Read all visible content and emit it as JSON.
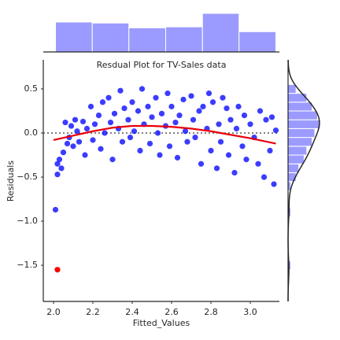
{
  "chart_data": {
    "type": "scatter",
    "title": "Resdual Plot for TV-Sales data",
    "xlabel": "Fitted_Values",
    "ylabel": "Residuals",
    "xlim": [
      1.948,
      3.148
    ],
    "ylim": [
      -1.91,
      0.83
    ],
    "xticks": [
      {
        "value": 2.0,
        "label": "2.0"
      },
      {
        "value": 2.2,
        "label": "2.2"
      },
      {
        "value": 2.4,
        "label": "2.4"
      },
      {
        "value": 2.6,
        "label": "2.6"
      },
      {
        "value": 2.8,
        "label": "2.8"
      },
      {
        "value": 3.0,
        "label": "3.0"
      }
    ],
    "yticks": [
      {
        "value": 0.5,
        "label": "0.5"
      },
      {
        "value": 0.0,
        "label": "0.0"
      },
      {
        "value": -0.5,
        "label": "−0.5"
      },
      {
        "value": -1.0,
        "label": "−1.0"
      },
      {
        "value": -1.5,
        "label": "−1.5"
      }
    ],
    "hline": 0,
    "scatter": {
      "color": "#1a1aff",
      "x": [
        2.01,
        2.02,
        2.02,
        2.03,
        2.04,
        2.05,
        2.06,
        2.07,
        2.08,
        2.09,
        2.1,
        2.11,
        2.12,
        2.13,
        2.15,
        2.16,
        2.17,
        2.19,
        2.2,
        2.21,
        2.23,
        2.24,
        2.25,
        2.26,
        2.28,
        2.29,
        2.3,
        2.31,
        2.33,
        2.34,
        2.35,
        2.36,
        2.38,
        2.39,
        2.4,
        2.41,
        2.43,
        2.44,
        2.45,
        2.46,
        2.48,
        2.49,
        2.5,
        2.52,
        2.53,
        2.54,
        2.55,
        2.57,
        2.58,
        2.59,
        2.6,
        2.62,
        2.63,
        2.64,
        2.66,
        2.67,
        2.68,
        2.7,
        2.71,
        2.72,
        2.74,
        2.75,
        2.76,
        2.78,
        2.79,
        2.8,
        2.81,
        2.83,
        2.84,
        2.85,
        2.86,
        2.88,
        2.89,
        2.9,
        2.92,
        2.93,
        2.94,
        2.96,
        2.97,
        2.98,
        3.0,
        3.02,
        3.04,
        3.05,
        3.07,
        3.08,
        3.1,
        3.11,
        3.12,
        3.13
      ],
      "y": [
        -0.87,
        -0.35,
        -0.47,
        -0.3,
        -0.4,
        -0.22,
        0.12,
        -0.12,
        -0.05,
        0.08,
        -0.15,
        0.15,
        0.02,
        -0.1,
        0.13,
        -0.25,
        0.05,
        0.3,
        -0.08,
        0.1,
        0.2,
        -0.18,
        0.35,
        0.0,
        0.4,
        0.12,
        -0.3,
        0.22,
        0.05,
        0.48,
        -0.1,
        0.28,
        0.15,
        -0.05,
        0.35,
        0.02,
        0.25,
        -0.2,
        0.5,
        0.1,
        0.3,
        -0.12,
        0.18,
        0.4,
        0.0,
        -0.25,
        0.22,
        0.08,
        0.45,
        -0.15,
        0.3,
        0.12,
        -0.28,
        0.2,
        0.38,
        0.02,
        -0.1,
        0.42,
        0.15,
        -0.05,
        0.25,
        -0.35,
        0.3,
        0.05,
        0.45,
        -0.2,
        0.35,
        -0.4,
        0.1,
        -0.1,
        0.4,
        0.28,
        -0.25,
        0.15,
        -0.45,
        0.05,
        0.3,
        -0.15,
        0.2,
        -0.3,
        0.1,
        -0.05,
        -0.35,
        0.25,
        -0.5,
        0.15,
        -0.2,
        0.18,
        -0.58,
        0.03
      ]
    },
    "outlier": {
      "color": "#ff0000",
      "x": [
        2.02
      ],
      "y": [
        -1.55
      ]
    },
    "lowess": {
      "color": "#e8000b",
      "x": [
        2.0,
        2.1,
        2.2,
        2.3,
        2.4,
        2.5,
        2.6,
        2.7,
        2.8,
        2.9,
        3.0,
        3.13
      ],
      "y": [
        -0.08,
        -0.03,
        0.02,
        0.06,
        0.08,
        0.08,
        0.07,
        0.05,
        0.02,
        -0.02,
        -0.06,
        -0.12
      ]
    },
    "hist_color": "#9b9bff",
    "top_hist": {
      "bins": [
        2.01,
        2.197,
        2.383,
        2.57,
        2.757,
        2.943,
        3.13
      ],
      "counts": [
        31,
        30,
        25,
        26,
        40,
        21
      ]
    },
    "right_hist": {
      "bins": [
        -1.55,
        -1.45,
        -1.35,
        -1.25,
        -1.15,
        -1.05,
        -0.95,
        -0.85,
        -0.75,
        -0.65,
        -0.55,
        -0.45,
        -0.35,
        -0.25,
        -0.15,
        -0.05,
        0.05,
        0.15,
        0.25,
        0.35,
        0.45,
        0.55
      ],
      "counts": [
        1,
        0,
        0,
        0,
        0,
        0,
        1,
        0,
        0,
        1,
        3,
        4,
        6,
        7,
        9,
        10,
        12,
        11,
        9,
        7,
        3
      ]
    }
  }
}
